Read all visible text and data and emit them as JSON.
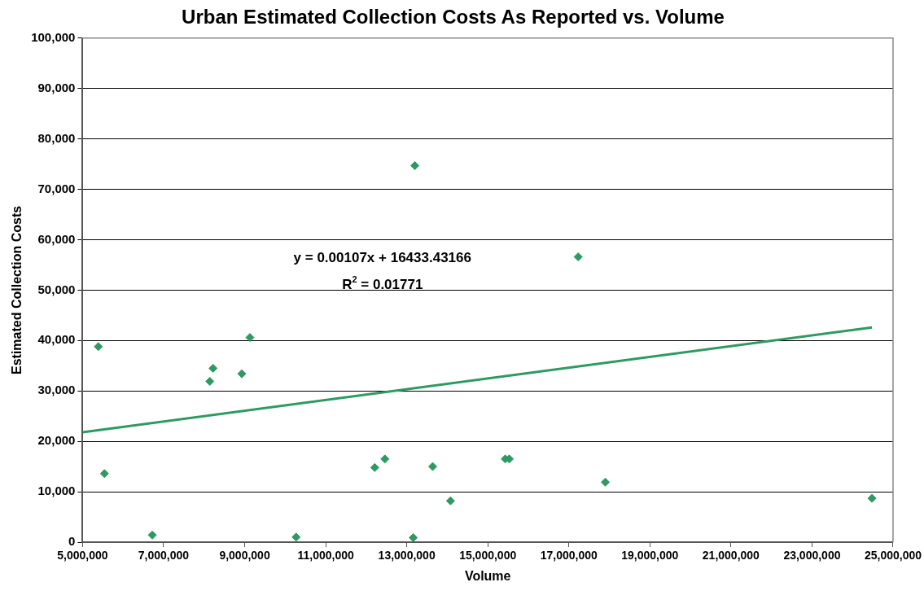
{
  "chart_data": {
    "type": "scatter",
    "title": "Urban Estimated Collection Costs As Reported vs. Volume",
    "xlabel": "Volume",
    "ylabel": "Estimated Collection Costs",
    "series": [
      {
        "type": "scatter",
        "color": "#2e9a62",
        "marker": "diamond",
        "x": [
          5390000,
          5540000,
          6720000,
          8140000,
          8220000,
          8930000,
          9130000,
          10270000,
          12210000,
          12460000,
          13160000,
          13200000,
          13640000,
          14080000,
          15430000,
          15530000,
          17230000,
          17900000,
          24480000
        ],
        "values": [
          38800,
          13600,
          1400,
          31900,
          34500,
          33400,
          40600,
          1000,
          14800,
          16500,
          900,
          74700,
          15000,
          8200,
          16500,
          16500,
          56600,
          11900,
          8700
        ]
      },
      {
        "type": "line",
        "color": "#2e9a62",
        "marker": "none",
        "line_style": "solid",
        "x": [
          5000000,
          24480000
        ],
        "values": [
          21800,
          42600
        ]
      }
    ],
    "xlim": [
      5000000,
      25000000
    ],
    "xticks": [
      {
        "value": 5000000,
        "label": "5,000,000"
      },
      {
        "value": 7000000,
        "label": "7,000,000"
      },
      {
        "value": 9000000,
        "label": "9,000,000"
      },
      {
        "value": 11000000,
        "label": "11,000,000"
      },
      {
        "value": 13000000,
        "label": "13,000,000"
      },
      {
        "value": 15000000,
        "label": "15,000,000"
      },
      {
        "value": 17000000,
        "label": "17,000,000"
      },
      {
        "value": 19000000,
        "label": "19,000,000"
      },
      {
        "value": 21000000,
        "label": "21,000,000"
      },
      {
        "value": 23000000,
        "label": "23,000,000"
      },
      {
        "value": 25000000,
        "label": "25,000,000"
      }
    ],
    "ylim": [
      0,
      100000
    ],
    "yticks": [
      0,
      {
        "value": 10000,
        "label": "10,000"
      },
      {
        "value": 20000,
        "label": "20,000"
      },
      {
        "value": 30000,
        "label": "30,000"
      },
      {
        "value": 40000,
        "label": "40,000"
      },
      {
        "value": 50000,
        "label": "50,000"
      },
      {
        "value": 60000,
        "label": "60,000"
      },
      {
        "value": 70000,
        "label": "70,000"
      },
      {
        "value": 80000,
        "label": "80,000"
      },
      {
        "value": 90000,
        "label": "90,000"
      },
      {
        "value": 100000,
        "label": "100,000"
      }
    ],
    "grid": "y",
    "legend": false,
    "annotations": [
      "y = 0.00107x + 16433.43166",
      "R$^{2}$ = 0.01771"
    ]
  }
}
